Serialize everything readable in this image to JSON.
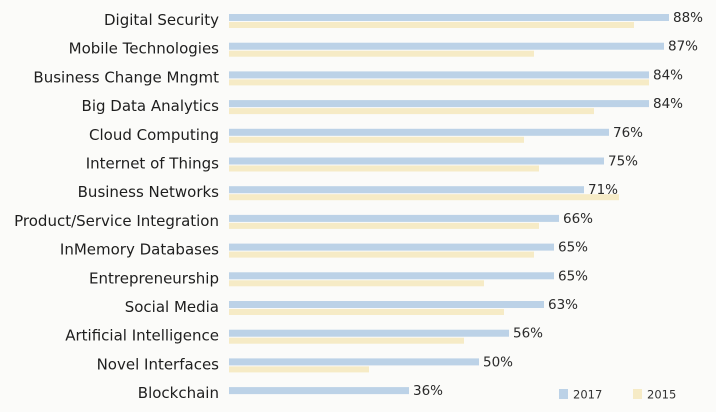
{
  "chart_data": {
    "type": "bar",
    "orientation": "horizontal",
    "title": "",
    "xlabel": "",
    "ylabel": "",
    "xlim": [
      0,
      100
    ],
    "grid": false,
    "legend_position": "bottom-right",
    "categories": [
      "Digital Security",
      "Mobile Technologies",
      "Business Change Mngmt",
      "Big Data Analytics",
      "Cloud Computing",
      "Internet of Things",
      "Business Networks",
      "Product/Service Integration",
      "InMemory Databases",
      "Entrepreneurship",
      "Social Media",
      "Artificial Intelligence",
      "Novel Interfaces",
      "Blockchain"
    ],
    "series": [
      {
        "name": "2017",
        "color": "#bcd2e7",
        "values": [
          88,
          87,
          84,
          84,
          76,
          75,
          71,
          66,
          65,
          65,
          63,
          56,
          50,
          36
        ],
        "value_labels": [
          "88%",
          "87%",
          "84%",
          "84%",
          "76%",
          "75%",
          "71%",
          "66%",
          "65%",
          "65%",
          "63%",
          "56%",
          "50%",
          "36%"
        ]
      },
      {
        "name": "2015",
        "color": "#f6ebc6",
        "values": [
          81,
          61,
          84,
          73,
          59,
          62,
          78,
          62,
          61,
          51,
          55,
          47,
          28,
          null
        ]
      }
    ]
  }
}
